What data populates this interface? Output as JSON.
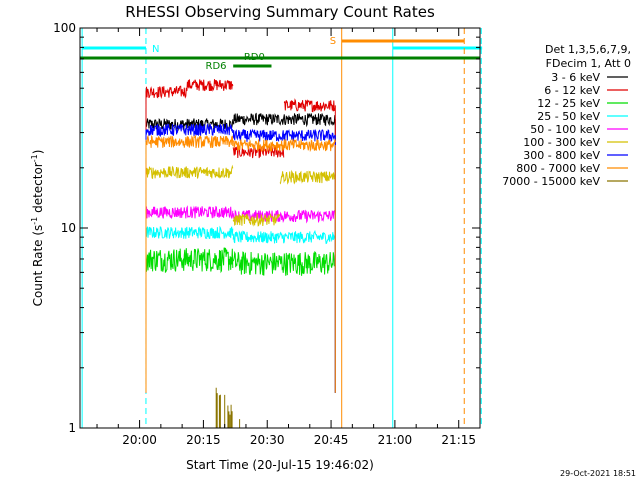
{
  "chart_data": {
    "type": "line",
    "title": "RHESSI Observing Summary Count Rates",
    "xlabel": "Start Time (20-Jul-15 19:46:02)",
    "ylabel_main": "Count Rate (s",
    "ylabel_sup1": "-1",
    "ylabel_mid": " detector",
    "ylabel_sup2": "-1",
    "ylabel_end": ")",
    "x_start_minutes": -14,
    "x_end_minutes": 80,
    "x_ticks": [
      {
        "m": 0,
        "label": "20:00"
      },
      {
        "m": 15,
        "label": "20:15"
      },
      {
        "m": 30,
        "label": "20:30"
      },
      {
        "m": 45,
        "label": "20:45"
      },
      {
        "m": 60,
        "label": "21:00"
      },
      {
        "m": 75,
        "label": "21:15"
      }
    ],
    "y_log": true,
    "ylim": [
      1,
      100
    ],
    "y_ticks": [
      {
        "v": 1,
        "label": "1"
      },
      {
        "v": 10,
        "label": "10"
      },
      {
        "v": 100,
        "label": "100"
      }
    ],
    "legend_header": [
      "Det 1,3,5,6,7,9,",
      "FDecim 1, Att 0"
    ],
    "series": [
      {
        "name": "3 - 6 keV",
        "color": "#000000",
        "segments": [
          {
            "x0": 1.5,
            "x1": 22,
            "v": 33
          },
          {
            "x0": 22,
            "x1": 46,
            "v": 35
          }
        ]
      },
      {
        "name": "6 - 12 keV",
        "color": "#e00000",
        "segments": [
          {
            "x0": 1.5,
            "x1": 11,
            "v": 48
          },
          {
            "x0": 11,
            "x1": 22,
            "v": 52
          },
          {
            "x0": 22,
            "x1": 34,
            "v": 24
          },
          {
            "x0": 34,
            "x1": 46,
            "v": 41
          }
        ]
      },
      {
        "name": "12 - 25 keV",
        "color": "#00dd00",
        "segments": [
          {
            "x0": 1.5,
            "x1": 22,
            "v": 7
          },
          {
            "x0": 22,
            "x1": 46,
            "v": 6.7
          }
        ]
      },
      {
        "name": "25 - 50 keV",
        "color": "#00ffff",
        "segments": [
          {
            "x0": 1.5,
            "x1": 22,
            "v": 9.5
          },
          {
            "x0": 22,
            "x1": 46,
            "v": 9
          }
        ]
      },
      {
        "name": "50 - 100 keV",
        "color": "#ff00ff",
        "segments": [
          {
            "x0": 1.5,
            "x1": 22,
            "v": 12
          },
          {
            "x0": 22,
            "x1": 46,
            "v": 11.5
          }
        ]
      },
      {
        "name": "100 - 300 keV",
        "color": "#d4c000",
        "segments": [
          {
            "x0": 1.5,
            "x1": 22,
            "v": 19
          },
          {
            "x0": 22,
            "x1": 33,
            "v": 11
          },
          {
            "x0": 33,
            "x1": 46,
            "v": 18
          }
        ]
      },
      {
        "name": "300 - 800 keV",
        "color": "#0000ff",
        "segments": [
          {
            "x0": 1.5,
            "x1": 22,
            "v": 31
          },
          {
            "x0": 22,
            "x1": 46,
            "v": 29
          }
        ]
      },
      {
        "name": "800 - 7000 keV",
        "color": "#ff8c00",
        "segments": [
          {
            "x0": 1.5,
            "x1": 22,
            "v": 27
          },
          {
            "x0": 22,
            "x1": 46,
            "v": 26
          }
        ]
      },
      {
        "name": "7000 - 15000 keV",
        "color": "#8b7500",
        "segments": [
          {
            "x0": 18,
            "x1": 24,
            "v": 1.3
          }
        ]
      }
    ],
    "annotations": {
      "night_color": "#00ffff",
      "saa_color": "#ff8c00",
      "flag_color": "#008000",
      "night_solid": [
        -13.5,
        59.5
      ],
      "night_dashed": [
        1.5,
        80.3
      ],
      "night_bars": [
        [
          -13.5,
          1.5
        ],
        [
          59.5,
          80.5
        ]
      ],
      "night_label": "N",
      "saa_solid": [
        47.5
      ],
      "saa_dashed": [
        76.3
      ],
      "saa_bar": [
        47.5,
        76.3
      ],
      "saa_label": "S",
      "flag_bars": [
        [
          -14,
          80
        ]
      ],
      "rd6_label": "RD6",
      "rd0_label": "RD0"
    },
    "grid": false,
    "legend_placement": "right"
  },
  "timestamp": "29-Oct-2021 18:51"
}
